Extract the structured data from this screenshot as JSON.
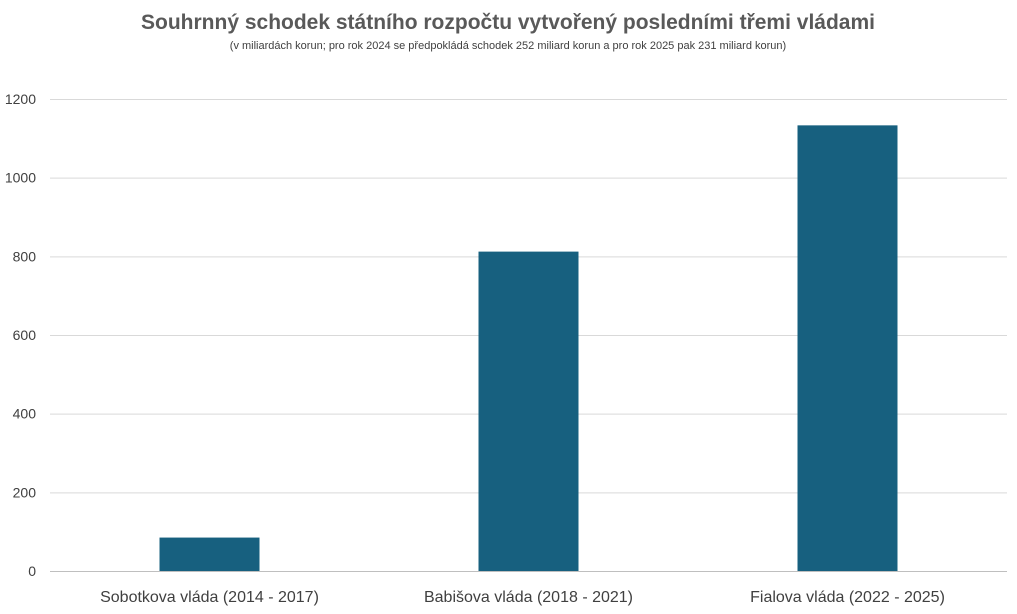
{
  "chart_data": {
    "type": "bar",
    "title": "Souhrnný schodek státního rozpočtu vytvořený posledními třemi vládami",
    "subtitle": "(v miliardách korun; pro rok 2024 se předpokládá schodek 252 miliard korun a pro rok 2025 pak 231 miliard korun)",
    "categories": [
      "Sobotkova vláda (2014 - 2017)",
      "Babišova vláda (2018 - 2021)",
      "Fialova vláda (2022 - 2025)"
    ],
    "values": [
      85,
      812,
      1133
    ],
    "xlabel": "",
    "ylabel": "",
    "ylim": [
      0,
      1200
    ],
    "yticks": [
      0,
      200,
      400,
      600,
      800,
      1000,
      1200
    ],
    "grid": true,
    "legend": "none",
    "colors": {
      "bar": "#17607f"
    }
  }
}
